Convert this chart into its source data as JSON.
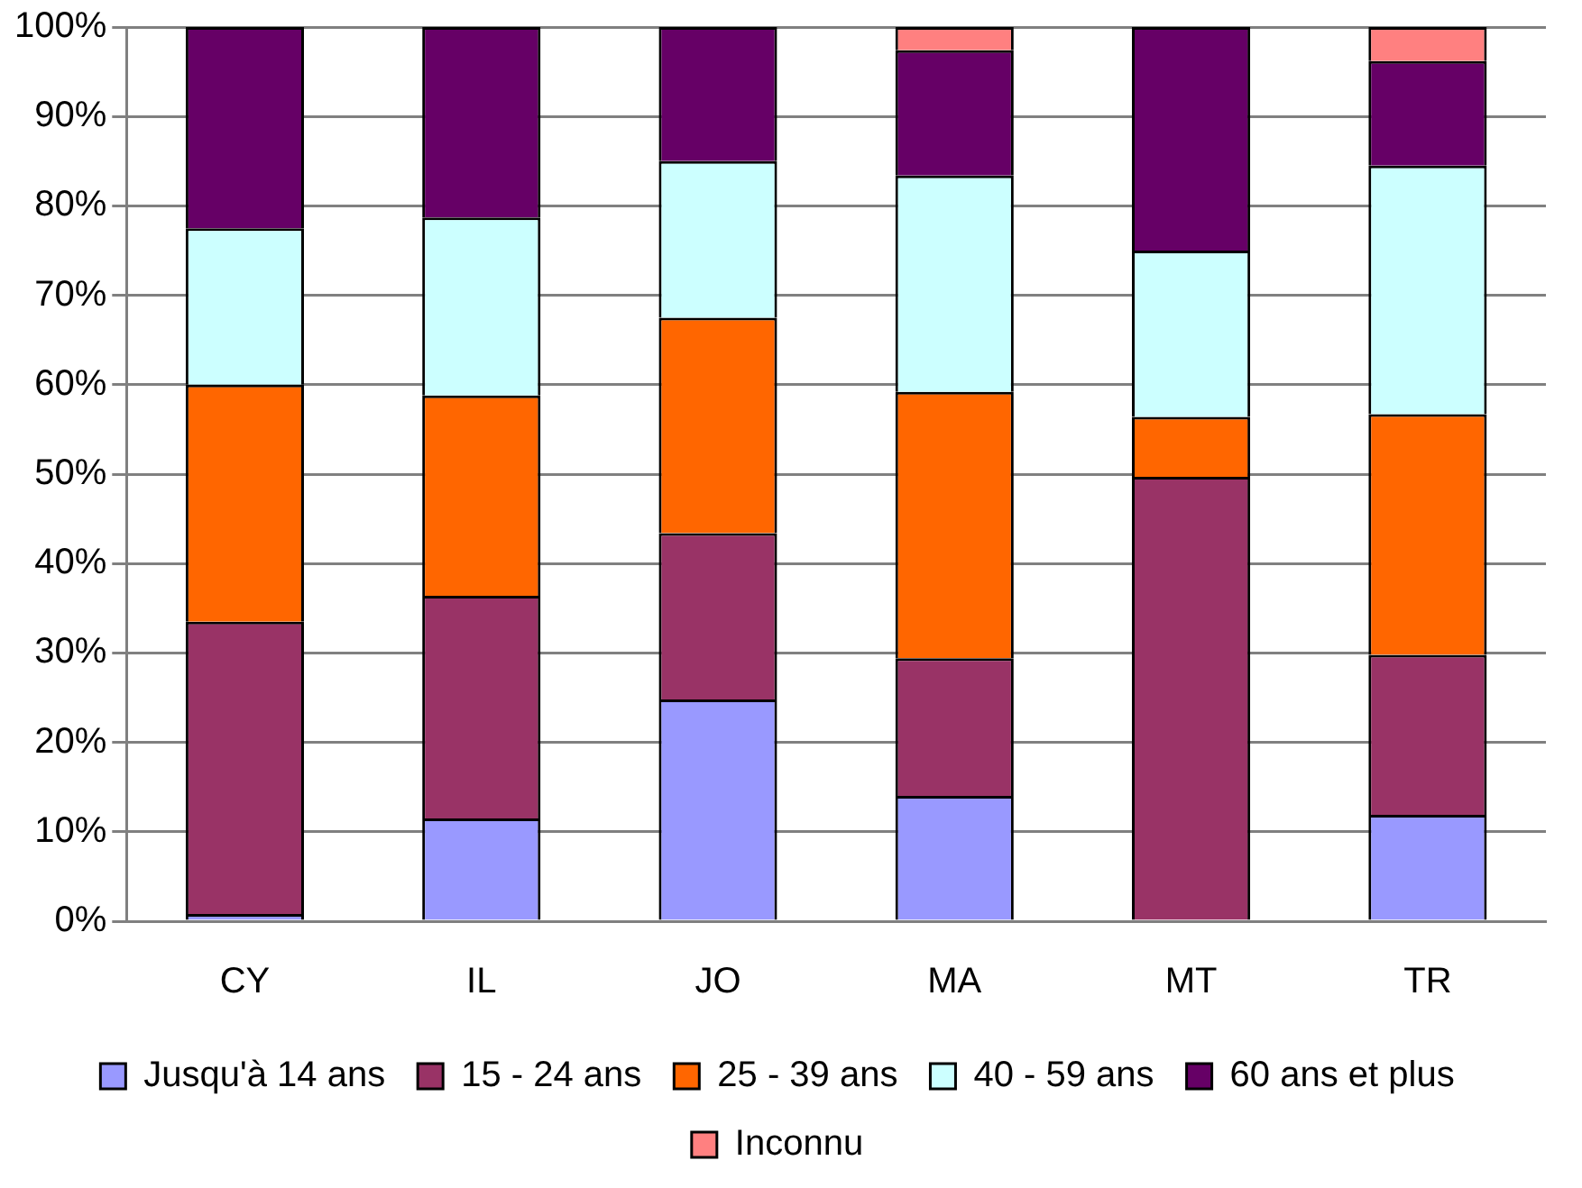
{
  "chart_data": {
    "type": "bar",
    "stacked": true,
    "categories": [
      "CY",
      "IL",
      "JO",
      "MA",
      "MT",
      "TR"
    ],
    "series": [
      {
        "name": "Jusqu'à 14 ans",
        "color": "#9999ff",
        "values": [
          0.8,
          11.5,
          24.8,
          14.0,
          0,
          11.9
        ]
      },
      {
        "name": "15 - 24 ans",
        "color": "#993366",
        "values": [
          32.7,
          24.9,
          18.6,
          15.4,
          49.7,
          17.9
        ]
      },
      {
        "name": "25 - 39 ans",
        "color": "#ff6600",
        "values": [
          26.5,
          22.4,
          24.1,
          29.8,
          6.7,
          26.9
        ]
      },
      {
        "name": "40 - 59 ans",
        "color": "#ccffff",
        "values": [
          17.5,
          19.9,
          17.5,
          24.2,
          18.6,
          27.8
        ]
      },
      {
        "name": "60 ans et plus",
        "color": "#660066",
        "values": [
          22.5,
          21.3,
          15.0,
          14.0,
          25.0,
          11.7
        ]
      },
      {
        "name": "Inconnu",
        "color": "#ff8080",
        "values": [
          0,
          0,
          0,
          2.6,
          0,
          3.8
        ]
      }
    ],
    "ylim": [
      0,
      100
    ],
    "yticks": [
      {
        "value": 0,
        "label": "0%"
      },
      {
        "value": 10,
        "label": "10%"
      },
      {
        "value": 20,
        "label": "20%"
      },
      {
        "value": 30,
        "label": "30%"
      },
      {
        "value": 40,
        "label": "40%"
      },
      {
        "value": 50,
        "label": "50%"
      },
      {
        "value": 60,
        "label": "60%"
      },
      {
        "value": 70,
        "label": "70%"
      },
      {
        "value": 80,
        "label": "80%"
      },
      {
        "value": 90,
        "label": "90%"
      },
      {
        "value": 100,
        "label": "100%"
      }
    ],
    "grid": "y",
    "legend": "bottom"
  }
}
